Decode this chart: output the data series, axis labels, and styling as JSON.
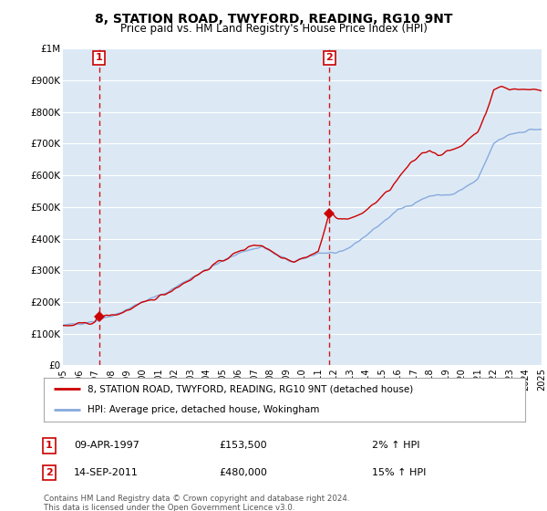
{
  "title": "8, STATION ROAD, TWYFORD, READING, RG10 9NT",
  "subtitle": "Price paid vs. HM Land Registry's House Price Index (HPI)",
  "background_color": "#ffffff",
  "plot_bg_color": "#dce9f5",
  "grid_color": "#ffffff",
  "house_color": "#cc0000",
  "hpi_color": "#88aadd",
  "ylim": [
    0,
    1000000
  ],
  "yticks": [
    0,
    100000,
    200000,
    300000,
    400000,
    500000,
    600000,
    700000,
    800000,
    900000,
    1000000
  ],
  "ytick_labels": [
    "£0",
    "£100K",
    "£200K",
    "£300K",
    "£400K",
    "£500K",
    "£600K",
    "£700K",
    "£800K",
    "£900K",
    "£1M"
  ],
  "sale1_year": 1997.27,
  "sale1_price": 153500,
  "sale1_label": "1",
  "sale1_date": "09-APR-1997",
  "sale1_pct": "2%",
  "sale2_year": 2011.71,
  "sale2_price": 480000,
  "sale2_label": "2",
  "sale2_date": "14-SEP-2011",
  "sale2_pct": "15%",
  "legend_house": "8, STATION ROAD, TWYFORD, READING, RG10 9NT (detached house)",
  "legend_hpi": "HPI: Average price, detached house, Wokingham",
  "footnote": "Contains HM Land Registry data © Crown copyright and database right 2024.\nThis data is licensed under the Open Government Licence v3.0."
}
